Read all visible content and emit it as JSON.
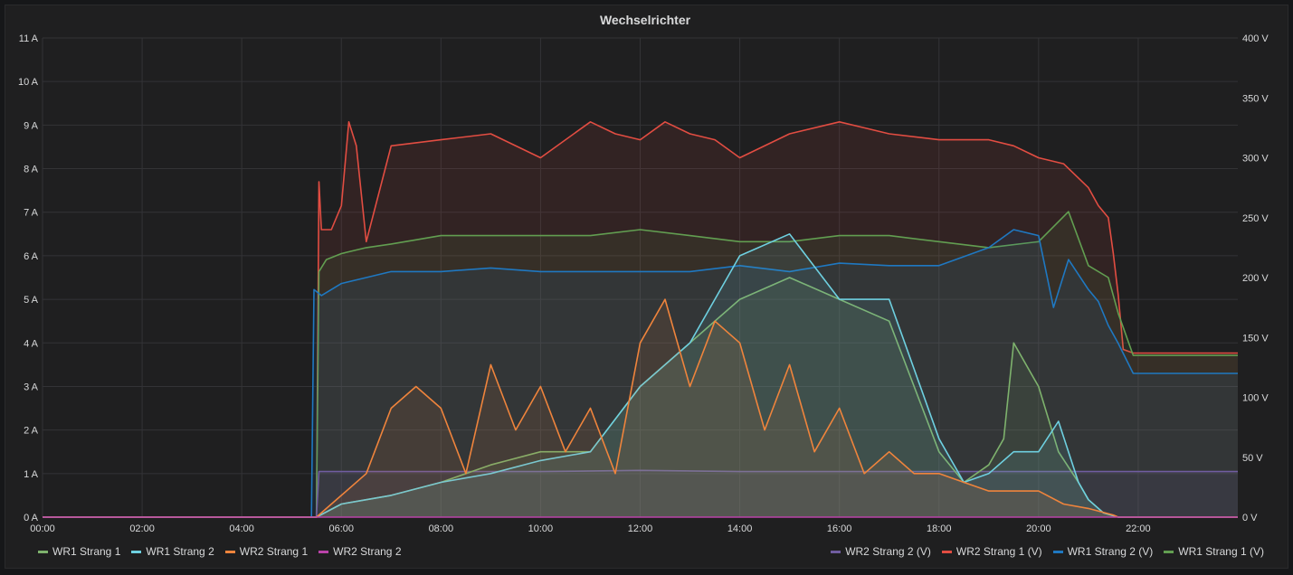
{
  "chart_data": {
    "type": "line",
    "title": "Wechselrichter",
    "x_ticks": [
      "00:00",
      "02:00",
      "04:00",
      "06:00",
      "08:00",
      "10:00",
      "12:00",
      "14:00",
      "16:00",
      "18:00",
      "20:00",
      "22:00"
    ],
    "x_range_hours": [
      0,
      24
    ],
    "y_left": {
      "unit": "A",
      "range": [
        0,
        11
      ],
      "ticks": [
        "0 A",
        "1 A",
        "2 A",
        "3 A",
        "4 A",
        "5 A",
        "6 A",
        "7 A",
        "8 A",
        "9 A",
        "10 A",
        "11 A"
      ]
    },
    "y_right": {
      "unit": "V",
      "range": [
        0,
        400
      ],
      "ticks": [
        "0 V",
        "50 V",
        "100 V",
        "150 V",
        "200 V",
        "250 V",
        "300 V",
        "350 V",
        "400 V"
      ]
    },
    "series": [
      {
        "name": "WR2 Strang 1 (V)",
        "axis": "right",
        "color": "#e24d42",
        "x": [
          0,
          5.5,
          5.55,
          5.6,
          5.8,
          6.0,
          6.15,
          6.3,
          6.5,
          7,
          8,
          9,
          10,
          11,
          11.5,
          12,
          12.5,
          13,
          13.5,
          14,
          15,
          16,
          16.5,
          17,
          18,
          19,
          19.5,
          20,
          20.5,
          21,
          21.2,
          21.4,
          21.5,
          21.6,
          21.7,
          21.9,
          24
        ],
        "values": [
          0,
          0,
          280,
          240,
          240,
          260,
          330,
          310,
          230,
          310,
          315,
          320,
          300,
          330,
          320,
          315,
          330,
          320,
          315,
          300,
          320,
          330,
          325,
          320,
          315,
          315,
          310,
          300,
          295,
          275,
          260,
          250,
          220,
          185,
          140,
          137,
          137
        ]
      },
      {
        "name": "WR1 Strang 1 (V)",
        "axis": "right",
        "color": "#629e51",
        "x": [
          0,
          5.5,
          5.55,
          5.7,
          6.0,
          6.5,
          7,
          8,
          9,
          10,
          11,
          12,
          13,
          14,
          15,
          16,
          17,
          18,
          19,
          20,
          20.6,
          21,
          21.4,
          21.6,
          21.9,
          24
        ],
        "values": [
          0,
          0,
          205,
          215,
          220,
          225,
          228,
          235,
          235,
          235,
          235,
          240,
          235,
          230,
          230,
          235,
          235,
          230,
          225,
          230,
          255,
          210,
          200,
          170,
          135,
          135
        ]
      },
      {
        "name": "WR1 Strang 2 (V)",
        "axis": "right",
        "color": "#1f78c1",
        "x": [
          0,
          5.4,
          5.45,
          5.6,
          6.0,
          6.5,
          7,
          8,
          9,
          10,
          11,
          12,
          13,
          14,
          15,
          16,
          17,
          18,
          19,
          19.5,
          20,
          20.3,
          20.6,
          21,
          21.2,
          21.4,
          21.6,
          21.9,
          24
        ],
        "values": [
          0,
          0,
          190,
          185,
          195,
          200,
          205,
          205,
          208,
          205,
          205,
          205,
          205,
          210,
          205,
          212,
          210,
          210,
          225,
          240,
          235,
          175,
          215,
          190,
          180,
          160,
          145,
          120,
          120
        ]
      },
      {
        "name": "WR2 Strang 2 (V)",
        "axis": "right",
        "color": "#705da0",
        "x": [
          0,
          5.5,
          5.55,
          6,
          8,
          10,
          12,
          14,
          16,
          18,
          20,
          22,
          24
        ],
        "values": [
          0,
          0,
          38,
          38,
          38,
          38,
          39,
          38,
          38,
          38,
          38,
          38,
          38
        ]
      },
      {
        "name": "WR1 Strang 1",
        "axis": "left",
        "color": "#7eb26d",
        "x": [
          0,
          5.5,
          6,
          7,
          8,
          9,
          10,
          11,
          12,
          13,
          14,
          15,
          16,
          17,
          18,
          18.5,
          19,
          19.3,
          19.5,
          20,
          20.4,
          20.8,
          21,
          21.3,
          21.6,
          24
        ],
        "values": [
          0,
          0,
          0.3,
          0.5,
          0.8,
          1.2,
          1.5,
          1.5,
          3.0,
          4.0,
          5.0,
          5.5,
          5.0,
          4.5,
          1.5,
          0.8,
          1.2,
          1.8,
          4.0,
          3.0,
          1.5,
          0.8,
          0.4,
          0.1,
          0,
          0
        ]
      },
      {
        "name": "WR1 Strang 2",
        "axis": "left",
        "color": "#6ed0e0",
        "x": [
          0,
          5.5,
          6,
          7,
          8,
          9,
          10,
          11,
          12,
          13,
          14,
          15,
          16,
          17,
          18,
          18.5,
          19,
          19.5,
          20,
          20.4,
          20.8,
          21,
          21.3,
          21.6,
          24
        ],
        "values": [
          0,
          0,
          0.3,
          0.5,
          0.8,
          1.0,
          1.3,
          1.5,
          3.0,
          4.0,
          6.0,
          6.5,
          5.0,
          5.0,
          1.8,
          0.8,
          1.0,
          1.5,
          1.5,
          2.2,
          0.8,
          0.4,
          0.1,
          0,
          0
        ]
      },
      {
        "name": "WR2 Strang 1",
        "axis": "left",
        "color": "#ef843c",
        "x": [
          0,
          5.5,
          6,
          6.5,
          7,
          7.5,
          8,
          8.5,
          9,
          9.5,
          10,
          10.5,
          11,
          11.5,
          12,
          12.5,
          13,
          13.5,
          14,
          14.5,
          15,
          15.5,
          16,
          16.5,
          17,
          17.5,
          18,
          18.5,
          19,
          19.5,
          20,
          20.5,
          21,
          21.5,
          21.6,
          24
        ],
        "values": [
          0,
          0,
          0.5,
          1.0,
          2.5,
          3.0,
          2.5,
          1.0,
          3.5,
          2.0,
          3.0,
          1.5,
          2.5,
          1.0,
          4.0,
          5.0,
          3.0,
          4.5,
          4.0,
          2.0,
          3.5,
          1.5,
          2.5,
          1.0,
          1.5,
          1.0,
          1.0,
          0.8,
          0.6,
          0.6,
          0.6,
          0.3,
          0.2,
          0.05,
          0,
          0
        ]
      },
      {
        "name": "WR2 Strang 2",
        "axis": "left",
        "color": "#ba43a9",
        "x": [
          0,
          24
        ],
        "values": [
          0,
          0
        ]
      }
    ],
    "legend_left": [
      "WR1 Strang 1",
      "WR1 Strang 2",
      "WR2 Strang 1",
      "WR2 Strang 2"
    ],
    "legend_right": [
      "WR2 Strang 2 (V)",
      "WR2 Strang 1 (V)",
      "WR1 Strang 2 (V)",
      "WR1 Strang 1 (V)"
    ]
  }
}
